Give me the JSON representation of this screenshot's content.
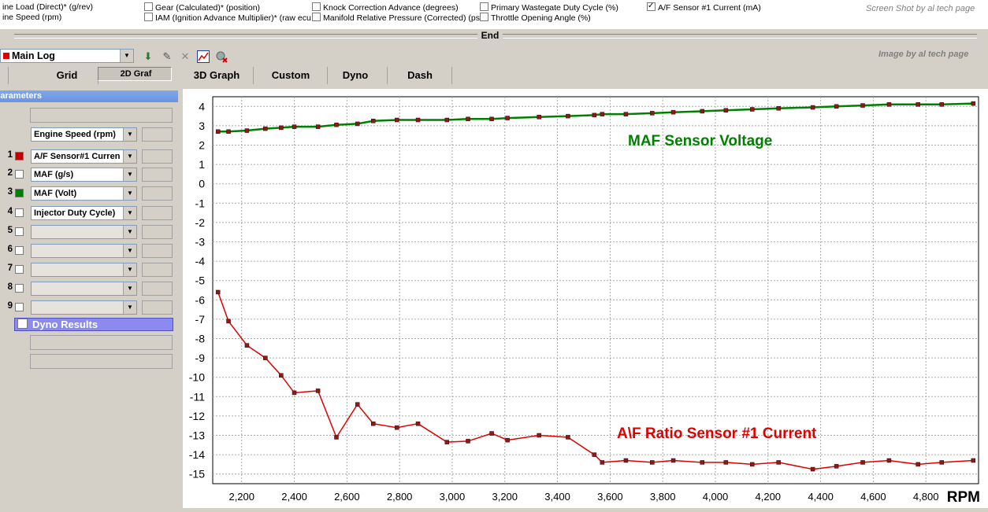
{
  "top_params": [
    {
      "label": "ine Load (Direct)* (g/rev)",
      "checked": false,
      "box": false
    },
    {
      "label": "ine Speed (rpm)",
      "checked": false,
      "box": false
    },
    {
      "label": "Gear (Calculated)* (position)",
      "checked": false,
      "box": true
    },
    {
      "label": "IAM (Ignition Advance Multiplier)* (raw ecu",
      "checked": false,
      "box": true
    },
    {
      "label": "Knock Correction Advance (degrees)",
      "checked": false,
      "box": true
    },
    {
      "label": "Manifold Relative Pressure (Corrected) (ps",
      "checked": false,
      "box": true
    },
    {
      "label": "Primary Wastegate Duty Cycle (%)",
      "checked": false,
      "box": true
    },
    {
      "label": "Throttle Opening Angle (%)",
      "checked": false,
      "box": true
    },
    {
      "label": "A/F Sensor #1 Current (mA)",
      "checked": true,
      "box": true
    }
  ],
  "watermark_top": "Screen Shot by al tech page",
  "watermark_toolbar": "Image by al tech page",
  "end_label": "End",
  "log_select": {
    "value": "Main Log"
  },
  "toolbar_icons": [
    "download-arrow-icon",
    "pencil-icon",
    "delete-x-icon",
    "graph-icon",
    "settings-x-icon"
  ],
  "tabs": [
    {
      "label": "Grid",
      "selected": false
    },
    {
      "label": "2D Graf",
      "selected": true
    },
    {
      "label": "3D Graph",
      "selected": false
    },
    {
      "label": "Custom",
      "selected": false
    },
    {
      "label": "Dyno",
      "selected": false
    },
    {
      "label": "Dash",
      "selected": false
    }
  ],
  "parameters": {
    "header": "Parameters",
    "x_axis_select": "Engine Speed (rpm)",
    "rows": [
      {
        "num": "1",
        "checked": true,
        "color": "#c00000",
        "value": "A/F Sensor#1 Curren"
      },
      {
        "num": "2",
        "checked": false,
        "color": "",
        "value": "MAF (g/s)"
      },
      {
        "num": "3",
        "checked": true,
        "color": "#008000",
        "value": "MAF (Volt)"
      },
      {
        "num": "4",
        "checked": false,
        "color": "",
        "value": "Injector Duty Cycle)"
      },
      {
        "num": "5",
        "checked": false,
        "color": "",
        "value": ""
      },
      {
        "num": "6",
        "checked": false,
        "color": "",
        "value": ""
      },
      {
        "num": "7",
        "checked": false,
        "color": "",
        "value": ""
      },
      {
        "num": "8",
        "checked": false,
        "color": "",
        "value": ""
      },
      {
        "num": "9",
        "checked": false,
        "color": "",
        "value": ""
      }
    ],
    "dyno_results": "Dyno Results"
  },
  "chart_data": {
    "type": "line",
    "xlabel": "RPM",
    "xlim": [
      2090,
      5000
    ],
    "ylim": [
      -15.5,
      4.5
    ],
    "x_ticks": [
      2200,
      2400,
      2600,
      2800,
      3000,
      3200,
      3400,
      3600,
      3800,
      4000,
      4200,
      4400,
      4600,
      4800
    ],
    "x_tick_labels": [
      "2,200",
      "2,400",
      "2,600",
      "2,800",
      "3,000",
      "3,200",
      "3,400",
      "3,600",
      "3,800",
      "4,000",
      "4,200",
      "4,400",
      "4,600",
      "4,800"
    ],
    "y_ticks": [
      4,
      3,
      2,
      1,
      0,
      -1,
      -2,
      -3,
      -4,
      -5,
      -6,
      -7,
      -8,
      -9,
      -10,
      -11,
      -12,
      -13,
      -14,
      -15
    ],
    "grid": true,
    "series": [
      {
        "name": "MAF Sensor Voltage",
        "color": "#008000",
        "points": [
          [
            2110,
            2.7
          ],
          [
            2150,
            2.7
          ],
          [
            2220,
            2.75
          ],
          [
            2290,
            2.85
          ],
          [
            2350,
            2.9
          ],
          [
            2400,
            2.95
          ],
          [
            2490,
            2.95
          ],
          [
            2560,
            3.05
          ],
          [
            2640,
            3.1
          ],
          [
            2700,
            3.25
          ],
          [
            2790,
            3.3
          ],
          [
            2870,
            3.3
          ],
          [
            2980,
            3.3
          ],
          [
            3060,
            3.35
          ],
          [
            3150,
            3.35
          ],
          [
            3210,
            3.4
          ],
          [
            3330,
            3.45
          ],
          [
            3440,
            3.5
          ],
          [
            3540,
            3.55
          ],
          [
            3570,
            3.6
          ],
          [
            3660,
            3.6
          ],
          [
            3760,
            3.65
          ],
          [
            3840,
            3.7
          ],
          [
            3950,
            3.75
          ],
          [
            4040,
            3.8
          ],
          [
            4140,
            3.85
          ],
          [
            4240,
            3.9
          ],
          [
            4370,
            3.95
          ],
          [
            4460,
            4.0
          ],
          [
            4560,
            4.05
          ],
          [
            4660,
            4.1
          ],
          [
            4770,
            4.1
          ],
          [
            4860,
            4.1
          ],
          [
            4980,
            4.15
          ]
        ]
      },
      {
        "name": "A\\F Ratio Sensor #1 Current",
        "color": "#e00000",
        "points": [
          [
            2110,
            -5.6
          ],
          [
            2150,
            -7.1
          ],
          [
            2220,
            -8.35
          ],
          [
            2290,
            -9.0
          ],
          [
            2350,
            -9.9
          ],
          [
            2400,
            -10.8
          ],
          [
            2490,
            -10.7
          ],
          [
            2560,
            -13.1
          ],
          [
            2640,
            -11.4
          ],
          [
            2700,
            -12.4
          ],
          [
            2790,
            -12.6
          ],
          [
            2870,
            -12.4
          ],
          [
            2980,
            -13.35
          ],
          [
            3060,
            -13.3
          ],
          [
            3150,
            -12.9
          ],
          [
            3210,
            -13.25
          ],
          [
            3330,
            -13.0
          ],
          [
            3440,
            -13.1
          ],
          [
            3540,
            -14.0
          ],
          [
            3570,
            -14.4
          ],
          [
            3660,
            -14.3
          ],
          [
            3760,
            -14.4
          ],
          [
            3840,
            -14.3
          ],
          [
            3950,
            -14.4
          ],
          [
            4040,
            -14.4
          ],
          [
            4140,
            -14.5
          ],
          [
            4240,
            -14.4
          ],
          [
            4370,
            -14.75
          ],
          [
            4460,
            -14.6
          ],
          [
            4560,
            -14.4
          ],
          [
            4660,
            -14.3
          ],
          [
            4770,
            -14.5
          ],
          [
            4860,
            -14.4
          ],
          [
            4980,
            -14.3
          ]
        ]
      }
    ],
    "annotations": [
      {
        "text": "MAF Sensor Voltage",
        "color": "#008000"
      },
      {
        "text": "A\\F Ratio Sensor #1 Current",
        "color": "#e00000"
      }
    ]
  }
}
